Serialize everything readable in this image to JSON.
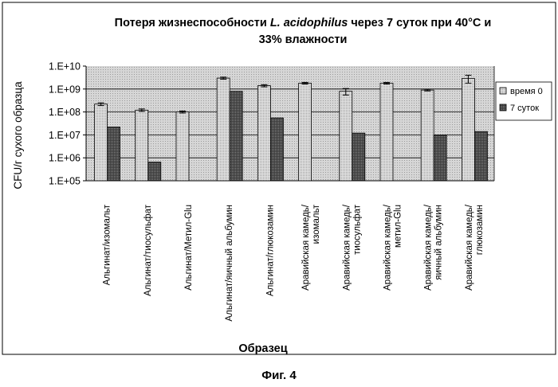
{
  "chart_data": {
    "type": "bar",
    "title_prefix": "Потеря жизнеспособности ",
    "title_species": "L. acidophilus",
    "title_suffix": " через 7 суток при 40°С и",
    "title_line2": "33% влажности",
    "xlabel": "Образец",
    "ylabel": "CFU/г сухого образца",
    "y_scale": "log",
    "ylim": [
      100000,
      10000000000
    ],
    "y_ticks": [
      {
        "value": 100000,
        "label": "1.E+05"
      },
      {
        "value": 1000000,
        "label": "1.E+06"
      },
      {
        "value": 10000000,
        "label": "1.E+07"
      },
      {
        "value": 100000000,
        "label": "1.E+08"
      },
      {
        "value": 1000000000,
        "label": "1.E+09"
      },
      {
        "value": 10000000000,
        "label": "1.E+10"
      }
    ],
    "grid": "horizontal",
    "legend_position": "right",
    "categories": [
      [
        "Альгинат/изомальт"
      ],
      [
        "Альгинат/тиосульфат"
      ],
      [
        "Альгинат/Метил-Glu"
      ],
      [
        "Альгинат/яичный альбумин"
      ],
      [
        "Альгинат/глюкозамин"
      ],
      [
        "Аравийская камедь/",
        "изомальт"
      ],
      [
        "Аравийская камедь/",
        "тиосульфат"
      ],
      [
        "Аравийская камедь/",
        "метил-Glu"
      ],
      [
        "Аравийская камедь/",
        "яичный альбумин"
      ],
      [
        "Аравийская камедь/",
        "глюкозамин"
      ]
    ],
    "series": [
      {
        "name": "время 0",
        "color": "#d4d4d4",
        "values": [
          220000000,
          120000000,
          100000000,
          3000000000,
          1400000000,
          1800000000,
          800000000,
          1800000000,
          900000000,
          2900000000
        ],
        "errors": [
          30000000,
          15000000,
          10000000,
          300000000,
          150000000,
          150000000,
          250000000,
          150000000,
          80000000,
          1100000000
        ]
      },
      {
        "name": "7 суток",
        "color": "#5a5a5a",
        "values": [
          22000000,
          650000,
          null,
          800000000,
          55000000,
          null,
          12000000,
          null,
          10000000,
          14000000
        ],
        "errors": [
          null,
          null,
          null,
          null,
          null,
          null,
          null,
          null,
          null,
          null
        ]
      }
    ]
  },
  "figure_caption": "Фиг. 4"
}
